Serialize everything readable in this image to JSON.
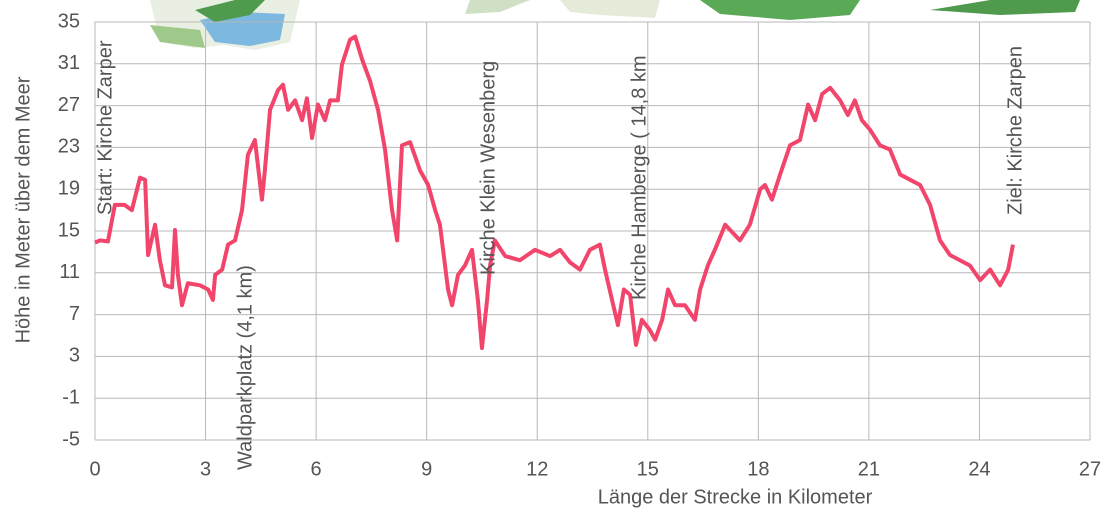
{
  "chart_data": {
    "type": "line",
    "xlabel": "Länge der Strecke in Kilometer",
    "ylabel": "Höhe in Meter über dem Meer",
    "xlim": [
      0,
      27
    ],
    "xticks": [
      0,
      3,
      6,
      9,
      12,
      15,
      18,
      21,
      24,
      27
    ],
    "ylim": [
      -5,
      35
    ],
    "yticks": [
      35,
      31,
      27,
      23,
      19,
      15,
      11,
      7,
      3,
      -1,
      -5
    ],
    "grid": true,
    "series": [
      {
        "color": "#f2456c",
        "x": [
          0,
          0.14,
          0.35,
          0.54,
          0.8,
          1.0,
          1.22,
          1.36,
          1.44,
          1.63,
          1.76,
          1.9,
          2.09,
          2.17,
          2.25,
          2.36,
          2.52,
          2.85,
          3.07,
          3.2,
          3.26,
          3.45,
          3.61,
          3.8,
          3.99,
          4.15,
          4.34,
          4.53,
          4.61,
          4.75,
          4.97,
          5.1,
          5.24,
          5.43,
          5.62,
          5.75,
          5.89,
          6.05,
          6.24,
          6.38,
          6.59,
          6.7,
          6.92,
          7.06,
          7.25,
          7.46,
          7.68,
          7.87,
          8.06,
          8.2,
          8.33,
          8.55,
          8.82,
          9.04,
          9.23,
          9.36,
          9.58,
          9.69,
          9.85,
          10.04,
          10.23,
          10.39,
          10.5,
          10.64,
          10.72,
          10.85,
          11.13,
          11.53,
          11.94,
          12.35,
          12.62,
          12.89,
          13.16,
          13.43,
          13.7,
          13.84,
          14.03,
          14.19,
          14.35,
          14.52,
          14.68,
          14.84,
          15.06,
          15.2,
          15.39,
          15.55,
          15.74,
          16.01,
          16.28,
          16.42,
          16.63,
          16.82,
          17.1,
          17.5,
          17.77,
          18.05,
          18.18,
          18.37,
          18.59,
          18.86,
          19.13,
          19.35,
          19.54,
          19.73,
          19.95,
          20.22,
          20.43,
          20.62,
          20.81,
          21.03,
          21.3,
          21.57,
          21.85,
          22.12,
          22.39,
          22.66,
          22.93,
          23.2,
          23.47,
          23.74,
          24.02,
          24.29,
          24.56,
          24.78,
          24.91
        ],
        "values": [
          13.9,
          14.1,
          14,
          17.5,
          17.5,
          17,
          20.1,
          19.9,
          12.7,
          15.6,
          12.2,
          9.8,
          9.6,
          15.1,
          10.8,
          7.9,
          10,
          9.8,
          9.4,
          8.4,
          10.8,
          11.3,
          13.7,
          14.1,
          17,
          22.3,
          23.7,
          18,
          20.8,
          26.6,
          28.5,
          29,
          26.6,
          27.5,
          25.6,
          27.7,
          23.9,
          27.1,
          25.6,
          27.5,
          27.5,
          30.9,
          33.3,
          33.6,
          31.4,
          29.4,
          26.6,
          22.8,
          17,
          14.1,
          23.2,
          23.5,
          20.8,
          19.4,
          17,
          15.6,
          9.4,
          7.9,
          10.8,
          11.7,
          13.2,
          8.4,
          3.8,
          8.4,
          11.7,
          14.1,
          12.6,
          12.2,
          13.2,
          12.6,
          13.2,
          12,
          11.3,
          13.2,
          13.7,
          11.3,
          8.4,
          6,
          9.4,
          8.9,
          4.1,
          6.5,
          5.5,
          4.6,
          6.5,
          9.4,
          7.9,
          7.9,
          6.5,
          9.4,
          11.7,
          13.2,
          15.6,
          14.1,
          15.6,
          19,
          19.4,
          18,
          20.4,
          23.2,
          23.7,
          27.1,
          25.6,
          28.1,
          28.7,
          27.5,
          26.1,
          27.5,
          25.6,
          24.7,
          23.2,
          22.8,
          20.4,
          19.9,
          19.4,
          17.5,
          14.1,
          12.7,
          12.2,
          11.7,
          10.3,
          11.3,
          9.8,
          11.3,
          13.7
        ]
      }
    ],
    "annotations": [
      {
        "text": "Start: Kirche Zarper",
        "x": 0.3
      },
      {
        "text": "Waldparkplatz (4,1 km)",
        "x": 4.1
      },
      {
        "text": "Kirche Klein Wesenberg",
        "x": 10.7
      },
      {
        "text": "Kirche Hamberge ( 14,8 km",
        "x": 14.8
      },
      {
        "text": "Ziel: Kirche Zarpen",
        "x": 25.0
      }
    ]
  }
}
